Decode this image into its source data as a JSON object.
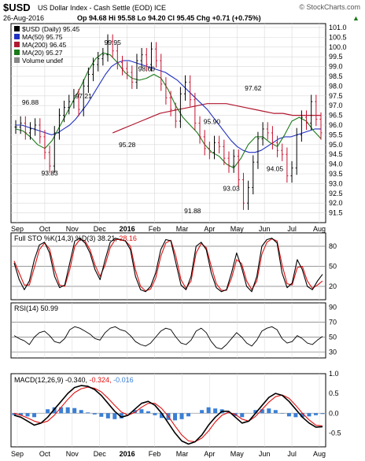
{
  "header": {
    "ticker": "$USD",
    "name": "US Dollar Index - Cash Settle (EOD) ICE",
    "watermark": "© StockCharts.com",
    "date": "26-Aug-2016",
    "ohlc": "Op 94.68 Hi 95.58 Lo 94.20 Cl 95.45 Chg +0.71 (+0.75%)",
    "change_arrow": "▲"
  },
  "colors": {
    "price": "#000000",
    "ma50": "#2030c0",
    "ma200": "#b01830",
    "ma20": "#1a7a1a",
    "up": "#000000",
    "down": "#c8102e",
    "sto_k": "#000000",
    "sto_d": "#e01010",
    "macd": "#000000",
    "signal": "#e01010",
    "hist": "#3a7fd5",
    "grid": "#d8d8d8"
  },
  "chart_data": [
    {
      "type": "line",
      "title": "$USD (Daily) 95.45",
      "legend": [
        {
          "name": "$USD (Daily)",
          "value": "95.45",
          "color": "#000000"
        },
        {
          "name": "MA(50)",
          "value": "95.75",
          "color": "#2030c0"
        },
        {
          "name": "MA(200)",
          "value": "96.45",
          "color": "#b01830"
        },
        {
          "name": "MA(20)",
          "value": "95.27",
          "color": "#1a7a1a"
        },
        {
          "name": "Volume undef",
          "value": "",
          "color": "#888888"
        }
      ],
      "ylim": [
        91.0,
        101.2
      ],
      "y_ticks": [
        "101.0",
        "100.5",
        "100.0",
        "99.5",
        "99.0",
        "98.5",
        "98.0",
        "97.5",
        "97.0",
        "96.5",
        "96.0",
        "95.5",
        "95.0",
        "94.5",
        "94.0",
        "93.5",
        "93.0",
        "92.5",
        "92.0",
        "91.5"
      ],
      "x_labels": [
        "Sep",
        "Oct",
        "Nov",
        "Dec",
        "2016",
        "Feb",
        "Mar",
        "Apr",
        "May",
        "Jun",
        "Jul",
        "Aug"
      ],
      "series": [
        {
          "name": "$USD (Daily)",
          "x": [
            0,
            4,
            8,
            12,
            16,
            20,
            24,
            28,
            32,
            36,
            40,
            44,
            48,
            52,
            56,
            60,
            64,
            68,
            72,
            76,
            80,
            84,
            88,
            92,
            96,
            100,
            104,
            108,
            112,
            116,
            120,
            124,
            128,
            132,
            136,
            140,
            144,
            148,
            152,
            156,
            160,
            164,
            168,
            172,
            176,
            180,
            184,
            188,
            192,
            196,
            200,
            204,
            208,
            212,
            216,
            220,
            224,
            228,
            232,
            236,
            240,
            244,
            248,
            252
          ],
          "values": [
            95.9,
            96.1,
            95.6,
            95.8,
            96.0,
            95.4,
            94.6,
            93.9,
            95.6,
            96.5,
            96.9,
            97.2,
            97.5,
            96.8,
            98.0,
            98.6,
            99.1,
            99.4,
            99.6,
            100.3,
            99.8,
            99.2,
            98.9,
            98.7,
            98.2,
            99.3,
            99.6,
            99.1,
            99.9,
            99.3,
            98.1,
            97.4,
            96.8,
            96.2,
            97.6,
            98.2,
            97.3,
            96.1,
            95.4,
            94.8,
            94.6,
            95.1,
            94.9,
            94.3,
            93.9,
            94.4,
            93.2,
            92.0,
            92.8,
            94.1,
            95.3,
            95.8,
            95.6,
            95.1,
            94.7,
            94.5,
            93.4,
            93.8,
            95.5,
            96.4,
            96.1,
            97.2,
            96.3,
            95.6
          ],
          "annotations": [
            {
              "label": "96.88",
              "x": 12,
              "y": 96.88
            },
            {
              "label": "93.83",
              "x": 28,
              "y": 93.83
            },
            {
              "label": "97.21",
              "x": 56,
              "y": 97.21
            },
            {
              "label": "99.95",
              "x": 80,
              "y": 99.95
            },
            {
              "label": "95.28",
              "x": 92,
              "y": 95.28
            },
            {
              "label": "98.60",
              "x": 108,
              "y": 98.6
            },
            {
              "label": "91.88",
              "x": 146,
              "y": 91.88
            },
            {
              "label": "95.90",
              "x": 162,
              "y": 95.9
            },
            {
              "label": "93.03",
              "x": 178,
              "y": 93.03
            },
            {
              "label": "97.62",
              "x": 196,
              "y": 97.62
            },
            {
              "label": "94.05",
              "x": 214,
              "y": 94.05
            }
          ]
        },
        {
          "name": "MA(50)",
          "values": [
            96.0,
            96.0,
            95.9,
            95.8,
            95.7,
            95.6,
            95.5,
            95.6,
            95.8,
            96.0,
            96.3,
            96.7,
            97.1,
            97.6,
            98.1,
            98.6,
            99.0,
            99.2,
            99.3,
            99.3,
            99.2,
            99.1,
            99.0,
            98.9,
            98.8,
            98.7,
            98.5,
            98.3,
            98.0,
            97.7,
            97.4,
            97.1,
            96.8,
            96.4,
            96.0,
            95.6,
            95.2,
            94.9,
            94.7,
            94.6,
            94.6,
            94.7,
            94.9,
            95.1,
            95.3,
            95.4,
            95.4,
            95.5,
            95.6,
            95.7,
            95.8,
            95.8
          ]
        },
        {
          "name": "MA(200)",
          "values": [
            95.6,
            95.8,
            96.0,
            96.2,
            96.4,
            96.6,
            96.7,
            96.8,
            96.9,
            97.0,
            97.1,
            97.1,
            97.1,
            97.0,
            96.9,
            96.8,
            96.7,
            96.6,
            96.6,
            96.5,
            96.5,
            96.5,
            96.5
          ]
        },
        {
          "name": "MA(20)",
          "values": [
            95.8,
            95.7,
            95.4,
            95.0,
            94.8,
            95.2,
            95.9,
            96.6,
            97.3,
            98.0,
            98.8,
            99.4,
            99.7,
            99.6,
            99.2,
            98.7,
            98.4,
            98.3,
            98.4,
            98.6,
            98.4,
            97.8,
            97.0,
            96.4,
            96.0,
            95.6,
            95.0,
            94.6,
            94.4,
            94.0,
            93.8,
            94.3,
            95.0,
            95.4,
            95.4,
            95.1,
            94.9,
            95.5,
            96.2,
            96.4,
            96.2,
            95.7,
            95.3
          ]
        }
      ]
    },
    {
      "type": "line",
      "title": "Full STO %K(14,3) %D(3) 38.21, 28.16",
      "legend": [
        {
          "name": "Full STO %K(14,3)",
          "value": "38.21",
          "color": "#000000"
        },
        {
          "name": "%D(3)",
          "value": "28.16",
          "color": "#e01010"
        }
      ],
      "ylim": [
        0,
        100
      ],
      "y_ticks": [
        "80",
        "50",
        "20"
      ],
      "ref_lines": [
        80,
        50,
        20
      ],
      "series": [
        {
          "name": "%K",
          "values": [
            55,
            30,
            15,
            28,
            60,
            82,
            86,
            70,
            35,
            18,
            22,
            55,
            88,
            92,
            85,
            70,
            45,
            30,
            60,
            86,
            92,
            90,
            88,
            75,
            35,
            15,
            12,
            20,
            40,
            75,
            90,
            88,
            55,
            22,
            15,
            35,
            80,
            86,
            75,
            40,
            18,
            12,
            15,
            40,
            70,
            48,
            20,
            12,
            35,
            80,
            90,
            92,
            85,
            40,
            18,
            25,
            60,
            45,
            20,
            15,
            28,
            38
          ]
        },
        {
          "name": "%D",
          "values": [
            58,
            40,
            22,
            22,
            48,
            75,
            85,
            76,
            45,
            22,
            20,
            45,
            80,
            90,
            88,
            75,
            52,
            35,
            52,
            78,
            90,
            90,
            88,
            80,
            45,
            20,
            13,
            16,
            32,
            65,
            85,
            89,
            65,
            30,
            17,
            28,
            70,
            84,
            78,
            50,
            24,
            14,
            14,
            32,
            60,
            54,
            28,
            15,
            28,
            68,
            86,
            91,
            88,
            52,
            24,
            22,
            48,
            50,
            28,
            17,
            22,
            28
          ]
        }
      ]
    },
    {
      "type": "line",
      "title": "RSI(14) 50.99",
      "legend": [
        {
          "name": "RSI(14)",
          "value": "50.99",
          "color": "#000000"
        }
      ],
      "ylim": [
        22,
        96
      ],
      "y_ticks": [
        "90",
        "70",
        "50",
        "30"
      ],
      "ref_lines": [
        70,
        50,
        30
      ],
      "series": [
        {
          "name": "RSI(14)",
          "values": [
            52,
            48,
            45,
            40,
            50,
            56,
            58,
            52,
            44,
            42,
            48,
            60,
            64,
            62,
            58,
            54,
            48,
            46,
            56,
            62,
            64,
            60,
            58,
            52,
            44,
            40,
            38,
            42,
            50,
            58,
            62,
            60,
            50,
            42,
            40,
            46,
            58,
            62,
            56,
            44,
            36,
            34,
            40,
            48,
            56,
            50,
            42,
            38,
            46,
            58,
            62,
            64,
            60,
            48,
            42,
            44,
            52,
            48,
            42,
            40,
            46,
            51
          ]
        }
      ]
    },
    {
      "type": "line",
      "title": "MACD(12,26,9) -0.340, -0.324, -0.016",
      "legend": [
        {
          "name": "MACD(12,26,9)",
          "value": "-0.340",
          "color": "#000000"
        },
        {
          "name": "",
          "value": "-0.324",
          "color": "#e01010"
        },
        {
          "name": "",
          "value": "-0.016",
          "color": "#3a7fd5"
        }
      ],
      "ylim": [
        -0.85,
        1.0
      ],
      "y_ticks": [
        "1.0",
        "0.5",
        "0.0",
        "-0.5"
      ],
      "ref_lines": [
        0
      ],
      "x_labels": [
        "Sep",
        "Oct",
        "Nov",
        "Dec",
        "2016",
        "Feb",
        "Mar",
        "Apr",
        "May",
        "Jun",
        "Jul",
        "Aug"
      ],
      "series": [
        {
          "name": "MACD",
          "values": [
            -0.05,
            -0.1,
            -0.2,
            -0.3,
            -0.25,
            -0.1,
            0.1,
            0.3,
            0.5,
            0.65,
            0.7,
            0.68,
            0.6,
            0.45,
            0.25,
            0.05,
            -0.1,
            -0.05,
            0.1,
            0.25,
            0.3,
            0.2,
            0.0,
            -0.25,
            -0.5,
            -0.7,
            -0.78,
            -0.72,
            -0.55,
            -0.3,
            -0.1,
            0.05,
            0.05,
            -0.1,
            -0.25,
            -0.2,
            0.0,
            0.2,
            0.4,
            0.5,
            0.45,
            0.3,
            0.1,
            -0.1,
            -0.25,
            -0.35,
            -0.34
          ]
        },
        {
          "name": "Signal",
          "values": [
            0.0,
            -0.05,
            -0.12,
            -0.2,
            -0.25,
            -0.2,
            -0.05,
            0.15,
            0.35,
            0.52,
            0.62,
            0.66,
            0.63,
            0.54,
            0.38,
            0.2,
            0.03,
            -0.05,
            0.02,
            0.15,
            0.25,
            0.25,
            0.12,
            -0.08,
            -0.32,
            -0.55,
            -0.7,
            -0.72,
            -0.63,
            -0.45,
            -0.22,
            -0.05,
            0.02,
            -0.03,
            -0.15,
            -0.2,
            -0.08,
            0.1,
            0.28,
            0.42,
            0.46,
            0.38,
            0.2,
            0.0,
            -0.17,
            -0.3,
            -0.32
          ]
        },
        {
          "name": "Histogram",
          "values": [
            -0.05,
            -0.05,
            -0.08,
            -0.1,
            0.0,
            0.1,
            0.15,
            0.15,
            0.15,
            0.13,
            0.08,
            0.02,
            -0.03,
            -0.09,
            -0.13,
            -0.15,
            -0.13,
            0.0,
            0.08,
            0.1,
            0.05,
            -0.05,
            -0.12,
            -0.17,
            -0.18,
            -0.15,
            -0.08,
            0.0,
            0.08,
            0.15,
            0.12,
            0.1,
            0.03,
            -0.07,
            -0.1,
            0.0,
            0.08,
            0.1,
            0.12,
            0.08,
            -0.01,
            -0.08,
            -0.1,
            -0.1,
            -0.08,
            -0.05,
            -0.02
          ]
        }
      ]
    }
  ]
}
